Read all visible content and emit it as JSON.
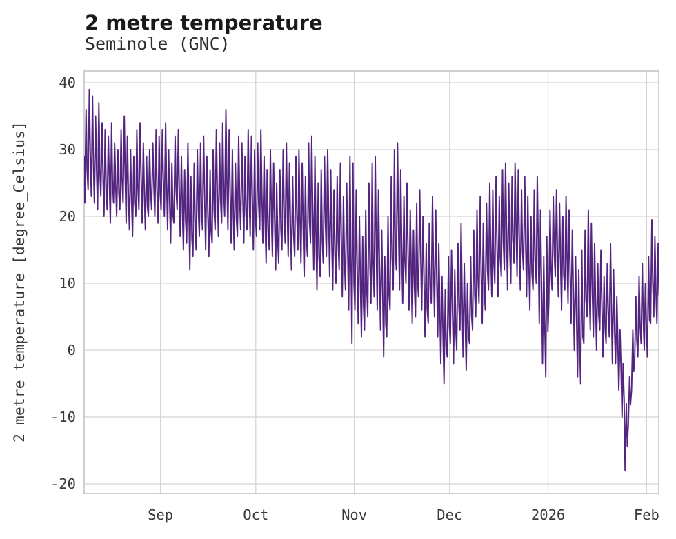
{
  "chart_data": {
    "type": "line",
    "title": "2 metre temperature",
    "subtitle": "Seminole (GNC)",
    "ylabel": "2 metre temperature [degree_Celsius]",
    "unit": "degree_Celsius",
    "line_color": "#542580",
    "grid_color": "#d4d4d4",
    "border_color": "#c3c3c3",
    "tick_color": "#3a3a3a",
    "background": "#ffffff",
    "grid": true,
    "legend": "none",
    "ylim": [
      -21.5,
      41.8
    ],
    "yticks": [
      40,
      30,
      20,
      10,
      0,
      -10,
      -20
    ],
    "xticks": [
      {
        "label": "Sep",
        "day": 24
      },
      {
        "label": "Oct",
        "day": 54
      },
      {
        "label": "Nov",
        "day": 85
      },
      {
        "label": "Dec",
        "day": 115
      },
      {
        "label": "2026",
        "day": 146
      },
      {
        "label": "Feb",
        "day": 177
      }
    ],
    "x_domain_days": [
      0,
      180.9
    ],
    "series": [
      {
        "name": "2 metre temperature",
        "sampling": "daily minima and maxima estimated from plot, day 0 at left axis edge",
        "daily_max": [
          36,
          39,
          38,
          35,
          37,
          34,
          33,
          32,
          34,
          31,
          30,
          33,
          35,
          32,
          30,
          29,
          33,
          34,
          31,
          29,
          30,
          31,
          33,
          32,
          33,
          34,
          30,
          28,
          32,
          33,
          29,
          27,
          31,
          26,
          28,
          30,
          31,
          32,
          29,
          27,
          30,
          33,
          31,
          34,
          36,
          33,
          30,
          28,
          32,
          31,
          29,
          33,
          32,
          30,
          31,
          33,
          29,
          27,
          30,
          28,
          25,
          27,
          30,
          31,
          28,
          26,
          29,
          30,
          28,
          26,
          31,
          32,
          29,
          25,
          27,
          29,
          30,
          27,
          24,
          26,
          28,
          23,
          25,
          29,
          28,
          24,
          20,
          17,
          21,
          25,
          28,
          29,
          24,
          18,
          14,
          20,
          26,
          30,
          31,
          27,
          23,
          25,
          21,
          18,
          22,
          24,
          20,
          16,
          19,
          23,
          21,
          16,
          11,
          9,
          14,
          15,
          12,
          16,
          19,
          13,
          10,
          14,
          18,
          21,
          23,
          19,
          22,
          25,
          24,
          26,
          23,
          27,
          28,
          25,
          26,
          28,
          27,
          24,
          26,
          23,
          20,
          24,
          26,
          21,
          14,
          17,
          21,
          23,
          24,
          22,
          20,
          23,
          21,
          18,
          14,
          12,
          15,
          18,
          21,
          19,
          16,
          13,
          15,
          11,
          13,
          16,
          12,
          8,
          3,
          -2,
          -8,
          -4,
          3,
          8,
          11,
          13,
          10,
          14,
          19.5,
          17,
          16
        ],
        "daily_min": [
          22,
          24,
          23,
          22,
          21,
          23,
          20,
          21,
          19,
          22,
          20,
          21,
          22,
          19,
          18,
          17,
          20,
          21,
          19,
          18,
          20,
          21,
          20,
          19,
          21,
          20,
          18,
          16,
          19,
          21,
          17,
          15,
          16,
          12,
          14,
          15,
          17,
          18,
          15,
          14,
          16,
          18,
          17,
          19,
          20,
          18,
          16,
          15,
          17,
          18,
          16,
          18,
          17,
          15,
          17,
          18,
          16,
          13,
          15,
          14,
          12,
          13,
          15,
          16,
          14,
          12,
          14,
          15,
          13,
          11,
          14,
          16,
          12,
          9,
          11,
          13,
          14,
          11,
          9,
          10,
          12,
          8,
          9,
          6,
          1,
          6,
          4,
          2,
          3,
          5,
          7,
          8,
          6,
          3,
          -1,
          2,
          6,
          9,
          12,
          9,
          7,
          10,
          6,
          4,
          5,
          8,
          6,
          2,
          4,
          7,
          5,
          2,
          -2,
          -5,
          -1,
          1,
          -2,
          0,
          3,
          -1,
          -3,
          1,
          3,
          5,
          7,
          4,
          6,
          9,
          8,
          10,
          8,
          11,
          12,
          9,
          10,
          13,
          11,
          9,
          12,
          8,
          6,
          9,
          10,
          4,
          -2,
          -4,
          7,
          9,
          11,
          8,
          6,
          9,
          7,
          4,
          0,
          -4,
          -5,
          1,
          5,
          3,
          2,
          0,
          3,
          -1,
          1,
          2,
          -2,
          -2,
          -6,
          -10,
          -18,
          -11,
          -6,
          -2,
          -1,
          1,
          0,
          -1,
          4,
          5,
          4
        ]
      }
    ]
  }
}
